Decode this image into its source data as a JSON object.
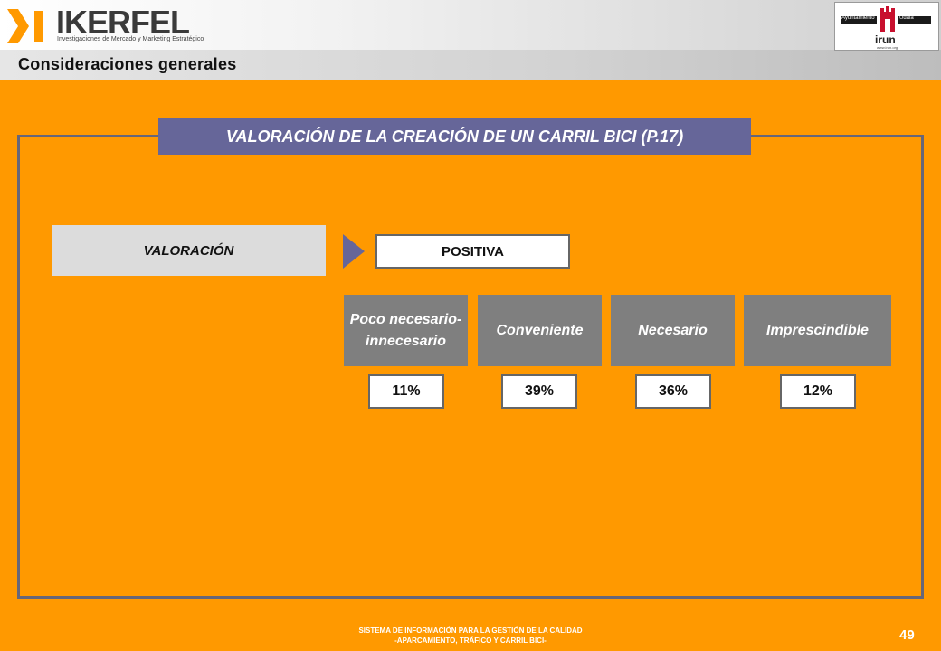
{
  "header": {
    "brand_name": "IKERFEL",
    "brand_tagline": "Investigaciones de Mercado y Marketing Estratégico",
    "section_title": "Consideraciones generales",
    "partner_logo": {
      "left_label": "Ayuntamiento",
      "right_label": "Udala",
      "name": "irun",
      "url": "www.irun.org"
    }
  },
  "main": {
    "title": "VALORACIÓN DE LA CREACIÓN DE UN CARRIL BICI (P.17)",
    "valoracion_label": "VALORACIÓN",
    "result_label": "POSITIVA",
    "categories": [
      {
        "label": "Poco necesario-innecesario",
        "value": "11%"
      },
      {
        "label": "Conveniente",
        "value": "39%"
      },
      {
        "label": "Necesario",
        "value": "36%"
      },
      {
        "label": "Imprescindible",
        "value": "12%"
      }
    ]
  },
  "footer": {
    "line1": "SISTEMA DE INFORMACIÓN PARA LA GESTIÓN DE LA CALIDAD",
    "line2": "-APARCAMIENTO, TRÁFICO Y CARRIL BICI-",
    "page_number": "49"
  },
  "colors": {
    "background": "#FF9900",
    "title_band": "#666699",
    "category_box": "#7F7F7F",
    "frame": "#66667A"
  }
}
